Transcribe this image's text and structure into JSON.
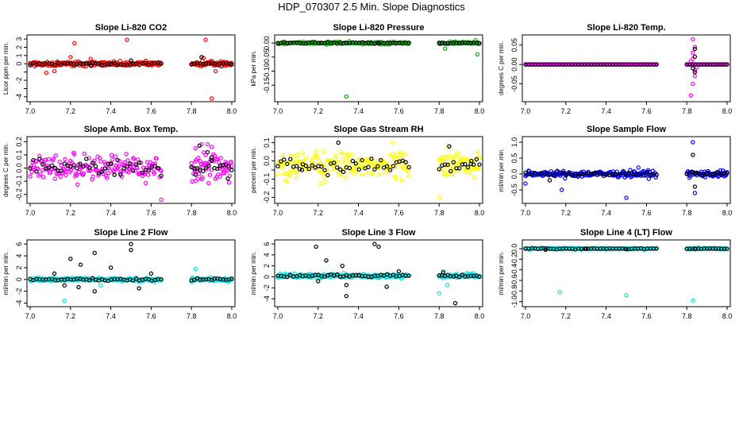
{
  "figure_title": "HDP_070307  2.5 Min. Slope Diagnostics",
  "chart_data": [
    {
      "type": "scatter",
      "title": "Slope Li-820 CO2",
      "ylabel": "Licor ppm per min.",
      "xlim": [
        7.0,
        8.0
      ],
      "ylim": [
        -4.3,
        3.2
      ],
      "xticks": [
        "7.0",
        "7.2",
        "7.4",
        "7.6",
        "7.8",
        "8.0"
      ],
      "yticks": [
        -4,
        -3,
        -2,
        -1,
        0,
        1,
        2,
        3
      ],
      "yticklabels": [
        "-4",
        "",
        "-2",
        "",
        "0",
        "1",
        "2",
        "3"
      ],
      "color": "#ff0000",
      "base": 0.0,
      "spread": 0.28,
      "gap": [
        7.65,
        7.8
      ],
      "outliers": [
        [
          7.22,
          2.5
        ],
        [
          7.48,
          2.9
        ],
        [
          7.87,
          2.9
        ],
        [
          7.9,
          -4.2
        ],
        [
          7.12,
          -0.9
        ],
        [
          7.08,
          -1.1
        ],
        [
          7.2,
          0.8
        ],
        [
          7.3,
          0.6
        ],
        [
          7.86,
          0.7
        ],
        [
          7.92,
          -0.9
        ]
      ],
      "black_outliers": [
        [
          7.5,
          0.4
        ],
        [
          7.3,
          -0.2
        ],
        [
          7.85,
          0.8
        ],
        [
          7.95,
          -0.3
        ]
      ],
      "series": [
        {
          "name": "slope",
          "color": "#ff0000"
        },
        {
          "name": "reference",
          "color": "#000000"
        }
      ]
    },
    {
      "type": "scatter",
      "title": "Slope Li-820 Pressure",
      "ylabel": "kPa per min.",
      "xlim": [
        7.0,
        8.0
      ],
      "ylim": [
        -0.2,
        0.02
      ],
      "xticks": [
        "7.0",
        "7.2",
        "7.4",
        "7.6",
        "7.8",
        "8.0"
      ],
      "yticks": [
        0.0,
        -0.05,
        -0.1,
        -0.15
      ],
      "yticklabels": [
        "0.00",
        "-0.05",
        "-0.10",
        "-0.15"
      ],
      "color": "#00b000",
      "base": 0.0,
      "spread": 0.004,
      "gap": [
        7.65,
        7.8
      ],
      "outliers": [
        [
          7.34,
          -0.19
        ],
        [
          7.99,
          -0.04
        ],
        [
          7.98,
          0.01
        ],
        [
          7.83,
          -0.02
        ]
      ],
      "black_outliers": [
        [
          7.5,
          -0.002
        ]
      ],
      "series": [
        {
          "name": "slope",
          "color": "#00b000"
        },
        {
          "name": "reference",
          "color": "#000000"
        }
      ]
    },
    {
      "type": "scatter",
      "title": "Slope Li-820 Temp.",
      "ylabel": "degrees C per min.",
      "xlim": [
        7.0,
        8.0
      ],
      "ylim": [
        -0.09,
        0.07
      ],
      "xticks": [
        "7.0",
        "7.2",
        "7.4",
        "7.6",
        "7.8",
        "8.0"
      ],
      "yticks": [
        -0.05,
        0.0,
        0.05
      ],
      "yticklabels": [
        "-0.05",
        "0.00",
        "0.05"
      ],
      "color": "#ff00ff",
      "base": 0.0,
      "spread": 0.0,
      "gap": [
        7.65,
        7.8
      ],
      "outliers": [
        [
          7.83,
          0.065
        ],
        [
          7.82,
          -0.08
        ],
        [
          7.83,
          0.03
        ],
        [
          7.84,
          -0.03
        ],
        [
          7.83,
          0.015
        ],
        [
          7.84,
          -0.015
        ],
        [
          7.82,
          0.008
        ],
        [
          7.85,
          -0.008
        ],
        [
          7.83,
          -0.05
        ],
        [
          7.84,
          0.045
        ]
      ],
      "black_outliers": [
        [
          7.84,
          0.02
        ],
        [
          7.83,
          -0.01
        ],
        [
          7.84,
          0.04
        ],
        [
          7.84,
          -0.02
        ]
      ],
      "series": [
        {
          "name": "slope",
          "color": "#ff00ff"
        },
        {
          "name": "reference",
          "color": "#000000"
        }
      ]
    },
    {
      "type": "scatter",
      "title": "Slope Amb. Box Temp.",
      "ylabel": "degrees C per min.",
      "xlim": [
        7.0,
        8.0
      ],
      "ylim": [
        -0.25,
        0.22
      ],
      "xticks": [
        "7.0",
        "7.2",
        "7.4",
        "7.6",
        "7.8",
        "8.0"
      ],
      "yticks": [
        -0.2,
        -0.1,
        0.0,
        0.1,
        0.2
      ],
      "yticklabels": [
        "-0.2",
        "-0.1",
        "0.0",
        "0.1",
        "0.2"
      ],
      "color": "#ff00ff",
      "base": 0.0,
      "spread": 0.1,
      "gap": [
        7.65,
        7.8
      ],
      "outliers": [
        [
          7.82,
          0.15
        ],
        [
          7.85,
          0.18
        ],
        [
          7.88,
          0.18
        ],
        [
          7.9,
          0.16
        ],
        [
          7.82,
          0.05
        ],
        [
          7.87,
          0.1
        ],
        [
          7.98,
          -0.02
        ],
        [
          7.65,
          -0.24
        ]
      ],
      "black_outliers": [
        [
          7.84,
          0.17
        ],
        [
          7.88,
          0.12
        ],
        [
          7.9,
          0.08
        ],
        [
          7.82,
          -0.05
        ],
        [
          7.98,
          -0.08
        ]
      ],
      "series": [
        {
          "name": "slope",
          "color": "#ff00ff"
        },
        {
          "name": "reference",
          "color": "#000000"
        }
      ]
    },
    {
      "type": "scatter",
      "title": "Slope Gas Stream RH",
      "ylabel": "percent per min.",
      "xlim": [
        7.0,
        8.0
      ],
      "ylim": [
        -0.22,
        0.12
      ],
      "xticks": [
        "7.0",
        "7.2",
        "7.4",
        "7.6",
        "7.8",
        "8.0"
      ],
      "yticks": [
        -0.2,
        -0.15,
        -0.1,
        -0.05,
        0.0,
        0.05,
        0.1
      ],
      "yticklabels": [
        "-0.2",
        "",
        "-0.1",
        "",
        "0.0",
        "",
        "0.1"
      ],
      "color": "#ffff00",
      "base": -0.02,
      "spread": 0.07,
      "gap": [
        7.65,
        7.8
      ],
      "outliers": [
        [
          7.8,
          -0.2
        ],
        [
          7.57,
          0.1
        ],
        [
          7.99,
          0.05
        ]
      ],
      "black_outliers": [
        [
          7.3,
          0.1
        ],
        [
          7.85,
          0.08
        ],
        [
          7.96,
          0.0
        ],
        [
          7.12,
          -0.05
        ]
      ],
      "series": [
        {
          "name": "slope",
          "color": "#ffff00"
        },
        {
          "name": "reference",
          "color": "#000000"
        }
      ]
    },
    {
      "type": "scatter",
      "title": "Slope Sample Flow",
      "ylabel": "ml/min per min.",
      "xlim": [
        7.0,
        8.0
      ],
      "ylim": [
        -0.85,
        1.1
      ],
      "xticks": [
        "7.0",
        "7.2",
        "7.4",
        "7.6",
        "7.8",
        "8.0"
      ],
      "yticks": [
        -0.5,
        0.0,
        0.5,
        1.0
      ],
      "yticklabels": [
        "-0.5",
        "0.0",
        "0.5",
        "1.0"
      ],
      "color": "#0000ff",
      "base": 0.0,
      "spread": 0.1,
      "gap": [
        7.65,
        7.8
      ],
      "outliers": [
        [
          7.83,
          1.0
        ],
        [
          7.5,
          -0.75
        ],
        [
          7.18,
          -0.5
        ],
        [
          7.0,
          -0.3
        ],
        [
          7.84,
          -0.6
        ],
        [
          7.56,
          0.2
        ]
      ],
      "black_outliers": [
        [
          7.83,
          0.6
        ],
        [
          7.84,
          -0.4
        ],
        [
          7.12,
          -0.2
        ]
      ],
      "series": [
        {
          "name": "slope",
          "color": "#0000ff"
        },
        {
          "name": "reference",
          "color": "#000000"
        }
      ]
    },
    {
      "type": "scatter",
      "title": "Slope Line 2 Flow",
      "ylabel": "ml/min per min.",
      "xlim": [
        7.0,
        8.0
      ],
      "ylim": [
        -4.2,
        6.3
      ],
      "xticks": [
        "7.0",
        "7.2",
        "7.4",
        "7.6",
        "7.8",
        "8.0"
      ],
      "yticks": [
        -4,
        -2,
        0,
        2,
        4,
        6
      ],
      "yticklabels": [
        "-4",
        "-2",
        "0",
        "2",
        "4",
        "6"
      ],
      "color": "#00e8e8",
      "base": 0.0,
      "spread": 0.3,
      "gap": [
        7.65,
        7.8
      ],
      "outliers": [
        [
          7.17,
          -3.6
        ],
        [
          7.82,
          1.8
        ],
        [
          7.8,
          -0.4
        ],
        [
          7.35,
          -1.0
        ]
      ],
      "black_outliers": [
        [
          7.2,
          3.5
        ],
        [
          7.25,
          2.5
        ],
        [
          7.32,
          4.5
        ],
        [
          7.4,
          2.0
        ],
        [
          7.5,
          6.0
        ],
        [
          7.5,
          5.0
        ],
        [
          7.24,
          -1.3
        ],
        [
          7.32,
          -2.0
        ],
        [
          7.17,
          -1.0
        ],
        [
          7.54,
          -1.5
        ],
        [
          7.12,
          1.0
        ],
        [
          7.6,
          1.0
        ]
      ],
      "series": [
        {
          "name": "slope",
          "color": "#00e8e8"
        },
        {
          "name": "reference",
          "color": "#000000"
        }
      ]
    },
    {
      "type": "scatter",
      "title": "Slope Line 3 Flow",
      "ylabel": "ml/min per min.",
      "xlim": [
        7.0,
        8.0
      ],
      "ylim": [
        -5.0,
        6.3
      ],
      "xticks": [
        "7.0",
        "7.2",
        "7.4",
        "7.6",
        "7.8",
        "8.0"
      ],
      "yticks": [
        -4,
        -2,
        0,
        2,
        4,
        6
      ],
      "yticklabels": [
        "-4",
        "-2",
        "0",
        "2",
        "4",
        "6"
      ],
      "color": "#00e8e8",
      "base": 0.2,
      "spread": 0.35,
      "gap": [
        7.65,
        7.8
      ],
      "outliers": [
        [
          7.8,
          -3.0
        ],
        [
          7.82,
          1.0
        ],
        [
          7.84,
          -1.5
        ]
      ],
      "black_outliers": [
        [
          7.19,
          5.5
        ],
        [
          7.24,
          3.0
        ],
        [
          7.32,
          2.0
        ],
        [
          7.34,
          -3.5
        ],
        [
          7.5,
          5.5
        ],
        [
          7.48,
          6.0
        ],
        [
          7.88,
          -4.8
        ],
        [
          7.54,
          -1.8
        ],
        [
          7.34,
          -1.5
        ],
        [
          7.2,
          -0.8
        ],
        [
          7.6,
          1.0
        ],
        [
          7.82,
          0.8
        ]
      ],
      "series": [
        {
          "name": "slope",
          "color": "#00e8e8"
        },
        {
          "name": "reference",
          "color": "#000000"
        }
      ]
    },
    {
      "type": "scatter",
      "title": "Slope Line 4 (LT) Flow",
      "ylabel": "ml/min per min.",
      "xlim": [
        7.0,
        8.0
      ],
      "ylim": [
        -1.05,
        0.12
      ],
      "xticks": [
        "7.0",
        "7.2",
        "7.4",
        "7.6",
        "7.8",
        "8.0"
      ],
      "yticks": [
        -1.0,
        -0.8,
        -0.6,
        -0.4,
        -0.2,
        0.0
      ],
      "yticklabels": [
        "-1.0",
        "-0.8",
        "-0.6",
        "-0.4",
        "-0.2",
        "0.0"
      ],
      "color": "#00e8e8",
      "base": 0.0,
      "spread": 0.015,
      "gap": [
        7.65,
        7.8
      ],
      "outliers": [
        [
          7.17,
          -0.82
        ],
        [
          7.5,
          -0.88
        ],
        [
          7.83,
          -0.98
        ]
      ],
      "black_outliers": [
        [
          7.1,
          -0.02
        ],
        [
          7.3,
          0.0
        ],
        [
          7.5,
          -0.01
        ],
        [
          7.84,
          0.0
        ]
      ],
      "series": [
        {
          "name": "slope",
          "color": "#00e8e8"
        },
        {
          "name": "reference",
          "color": "#000000"
        }
      ]
    }
  ]
}
